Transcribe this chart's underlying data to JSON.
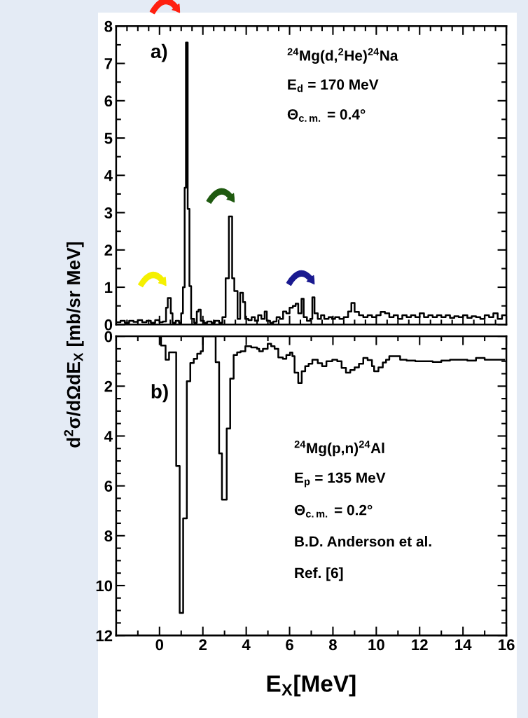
{
  "chart_data": [
    {
      "type": "step",
      "ylabel": "d$^{2}$σ/dΩdE$_{X}$ [mb/sr MeV]",
      "xlim": [
        -2,
        16
      ],
      "ylim": [
        0,
        8
      ],
      "yticks": [
        0,
        1,
        2,
        3,
        4,
        5,
        6,
        7,
        8
      ],
      "xticks": [
        0,
        2,
        4,
        6,
        8,
        10,
        12,
        14,
        16
      ],
      "tick_labels": "y",
      "annotations": [
        "a)",
        "$^{24}$Mg(d,$^{2}$He)$^{24}$Na",
        "E$_{d}$ = 170 MeV",
        "Θ$_{c.m.}$ = 0.4°"
      ],
      "series": [
        {
          "color": "#000000",
          "x": [
            -2.0,
            -1.8,
            -1.6,
            -1.4,
            -1.2,
            -1.0,
            -0.8,
            -0.6,
            -0.4,
            -0.2,
            0.0,
            0.15,
            0.3,
            0.38,
            0.52,
            0.6,
            0.75,
            0.9,
            1.0,
            1.08,
            1.16,
            1.22,
            1.3,
            1.38,
            1.46,
            1.6,
            1.72,
            1.8,
            1.9,
            2.05,
            2.2,
            2.4,
            2.55,
            2.75,
            2.9,
            3.05,
            3.2,
            3.35,
            3.45,
            3.6,
            3.72,
            3.85,
            3.95,
            4.1,
            4.25,
            4.4,
            4.55,
            4.7,
            4.85,
            4.95,
            5.1,
            5.25,
            5.4,
            5.55,
            5.7,
            5.85,
            6.0,
            6.15,
            6.28,
            6.4,
            6.55,
            6.65,
            6.8,
            6.95,
            7.05,
            7.15,
            7.3,
            7.45,
            7.6,
            7.8,
            7.95,
            8.1,
            8.3,
            8.5,
            8.7,
            8.85,
            9.0,
            9.2,
            9.4,
            9.6,
            9.8,
            10.0,
            10.2,
            10.4,
            10.6,
            10.8,
            11.0,
            11.2,
            11.4,
            11.6,
            11.8,
            12.0,
            12.2,
            12.4,
            12.6,
            12.8,
            13.0,
            13.2,
            13.4,
            13.6,
            13.8,
            14.0,
            14.2,
            14.4,
            14.6,
            14.8,
            15.0,
            15.2,
            15.4,
            15.6,
            15.8,
            16.0
          ],
          "values": [
            0.06,
            0.1,
            0.05,
            0.1,
            0.07,
            0.12,
            0.06,
            0.1,
            0.05,
            0.12,
            0.06,
            0.08,
            0.45,
            0.71,
            0.3,
            0.05,
            0.1,
            0.05,
            0.3,
            1.0,
            3.67,
            7.56,
            3.1,
            1.03,
            0.15,
            0.05,
            0.35,
            0.4,
            0.1,
            0.05,
            0.08,
            0.05,
            0.1,
            0.05,
            0.2,
            1.24,
            2.9,
            1.24,
            0.9,
            0.15,
            0.85,
            0.6,
            0.15,
            0.12,
            0.2,
            0.1,
            0.25,
            0.15,
            0.35,
            0.1,
            0.05,
            0.08,
            0.2,
            0.15,
            0.35,
            0.3,
            0.45,
            0.5,
            0.56,
            0.3,
            0.69,
            0.2,
            0.1,
            0.15,
            0.73,
            0.3,
            0.15,
            0.25,
            0.15,
            0.2,
            0.15,
            0.2,
            0.15,
            0.2,
            0.35,
            0.58,
            0.34,
            0.25,
            0.2,
            0.25,
            0.2,
            0.25,
            0.34,
            0.3,
            0.2,
            0.25,
            0.15,
            0.25,
            0.2,
            0.25,
            0.2,
            0.3,
            0.2,
            0.25,
            0.2,
            0.25,
            0.2,
            0.25,
            0.18,
            0.22,
            0.2,
            0.25,
            0.18,
            0.22,
            0.2,
            0.15,
            0.25,
            0.2,
            0.3,
            0.15,
            0.25,
            0.25
          ]
        }
      ]
    },
    {
      "type": "step",
      "xlabel": "E$_{X}$[MeV]",
      "xlim": [
        -2,
        16
      ],
      "ylim": [
        12,
        0
      ],
      "yticks": [
        0,
        2,
        4,
        6,
        8,
        10,
        12
      ],
      "xticks": [
        0,
        2,
        4,
        6,
        8,
        10,
        12,
        14,
        16
      ],
      "annotations": [
        "b)",
        "$^{24}$Mg(p,n)$^{24}$Al",
        "E$_{p}$ = 135 MeV",
        "Θ$_{c.m.}$ = 0.2°",
        "B.D. Anderson et al.",
        "Ref. [6]"
      ],
      "series": [
        {
          "color": "#000000",
          "x": [
            0.0,
            0.07,
            0.28,
            0.44,
            0.77,
            0.93,
            1.09,
            1.26,
            1.42,
            1.58,
            1.74,
            1.9,
            2.0,
            2.59,
            2.75,
            2.88,
            3.1,
            3.26,
            3.42,
            3.58,
            3.74,
            3.96,
            4.23,
            4.5,
            4.6,
            4.77,
            4.99,
            5.15,
            5.31,
            5.48,
            5.69,
            5.85,
            6.02,
            6.13,
            6.23,
            6.4,
            6.56,
            6.72,
            6.88,
            7.05,
            7.3,
            7.5,
            7.7,
            7.97,
            8.2,
            8.4,
            8.6,
            8.8,
            9.0,
            9.2,
            9.4,
            9.6,
            9.8,
            9.9,
            10.1,
            10.3,
            10.45,
            10.6,
            11.1,
            11.4,
            11.8,
            12.2,
            12.6,
            13.0,
            13.4,
            13.8,
            14.2,
            14.6,
            15.0,
            15.4,
            15.9
          ],
          "values": [
            0,
            0.37,
            0.94,
            0.64,
            5.2,
            11.1,
            7.3,
            1.8,
            1.07,
            0.9,
            0.7,
            0.6,
            0,
            1.04,
            4.7,
            6.55,
            3.7,
            1.7,
            0.75,
            0.64,
            0.6,
            0.4,
            0.45,
            0.5,
            0.6,
            0.5,
            0.3,
            0.4,
            0.5,
            0.85,
            0.9,
            0.75,
            0.65,
            0.8,
            1.46,
            1.87,
            1.4,
            1.2,
            1.1,
            0.94,
            1.08,
            1.2,
            1.0,
            0.94,
            1.0,
            1.27,
            1.46,
            1.35,
            1.25,
            1.1,
            0.87,
            0.95,
            1.2,
            1.4,
            1.25,
            1.05,
            0.94,
            0.8,
            0.94,
            0.97,
            1.0,
            1.0,
            1.03,
            0.97,
            0.94,
            0.94,
            0.97,
            0.87,
            0.94,
            0.94,
            0.94
          ]
        }
      ]
    }
  ]
}
